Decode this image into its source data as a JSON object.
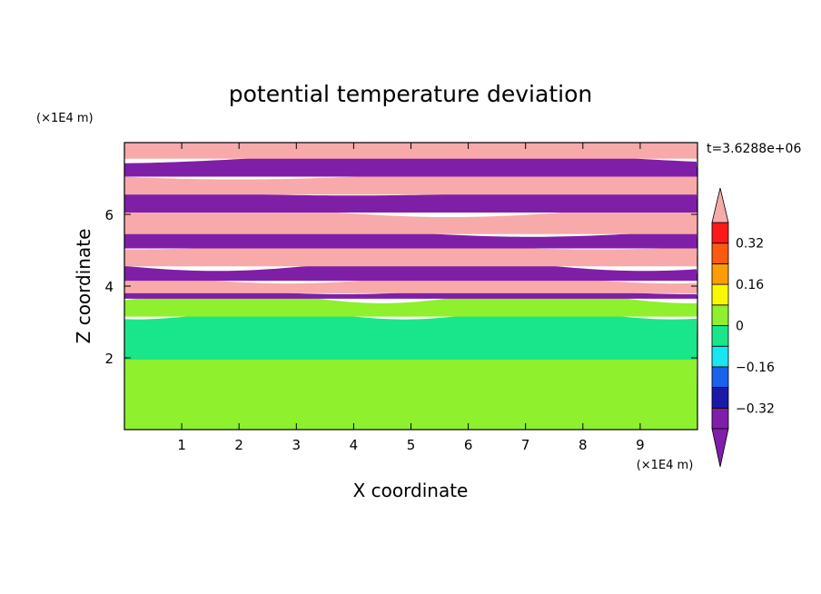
{
  "chart_data": {
    "type": "heatmap",
    "title": "potential temperature deviation",
    "xlabel": "X coordinate",
    "ylabel": "Z coordinate",
    "x_unit": "(×1E4 m)",
    "y_unit": "(×1E4 m)",
    "time_label": "t=3.6288e+06",
    "xlim": [
      0,
      10
    ],
    "ylim": [
      0,
      8
    ],
    "x_ticks": [
      1,
      2,
      3,
      4,
      5,
      6,
      7,
      8,
      9
    ],
    "y_ticks": [
      2,
      4,
      6
    ],
    "colorbar": {
      "levels": [
        -0.4,
        -0.32,
        -0.24,
        -0.16,
        -0.08,
        0,
        0.08,
        0.16,
        0.24,
        0.32,
        0.4
      ],
      "labels": [
        "0.32",
        "0.16",
        "0",
        "−0.16",
        "−0.32"
      ],
      "label_values": [
        0.32,
        0.16,
        0,
        -0.16,
        -0.32
      ],
      "colors": [
        "#7f1fa8",
        "#1a1aa6",
        "#1a62ee",
        "#19e6f0",
        "#19e68a",
        "#8ff02d",
        "#f8f806",
        "#fb9c08",
        "#fb5a12",
        "#fb1a1a",
        "#f8aaaa"
      ],
      "extend": "both"
    },
    "bands": [
      {
        "zmin": 0.0,
        "zmax": 2.0,
        "value": 0.04
      },
      {
        "zmin": 2.0,
        "zmax": 3.2,
        "value": -0.04
      },
      {
        "zmin": 3.2,
        "zmax": 3.7,
        "value": 0.04
      },
      {
        "zmin": 3.7,
        "zmax": 3.85,
        "value": -0.34
      },
      {
        "zmin": 3.85,
        "zmax": 4.2,
        "value": 0.42
      },
      {
        "zmin": 4.2,
        "zmax": 4.6,
        "value": -0.42
      },
      {
        "zmin": 4.6,
        "zmax": 5.1,
        "value": 0.42
      },
      {
        "zmin": 5.1,
        "zmax": 5.5,
        "value": -0.42
      },
      {
        "zmin": 5.5,
        "zmax": 6.1,
        "value": 0.42
      },
      {
        "zmin": 6.1,
        "zmax": 6.6,
        "value": -0.42
      },
      {
        "zmin": 6.6,
        "zmax": 7.1,
        "value": 0.42
      },
      {
        "zmin": 7.1,
        "zmax": 7.6,
        "value": -0.42
      },
      {
        "zmin": 7.6,
        "zmax": 8.0,
        "value": 0.42
      }
    ]
  }
}
